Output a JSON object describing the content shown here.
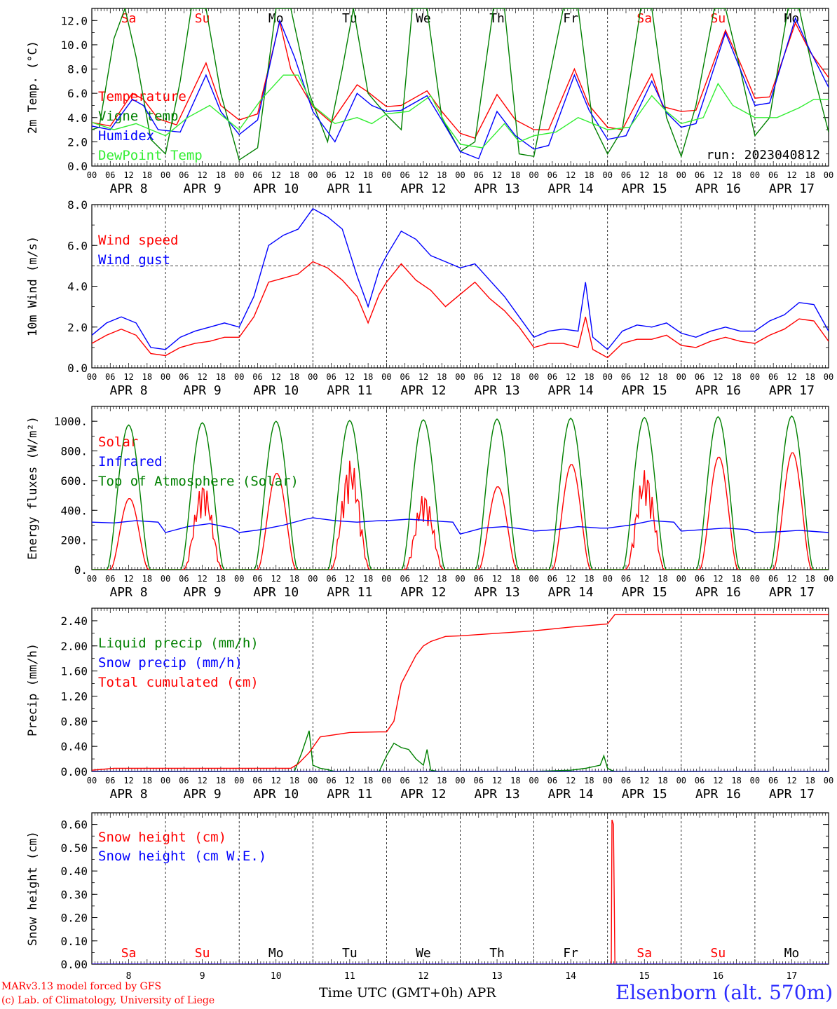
{
  "footer": {
    "model": "MARv3.13 model forced by GFS",
    "copyright": "(c) Lab. of Climatology, University of Liege",
    "xaxis_title": "Time UTC (GMT+0h) APR",
    "station": "Elsenborn (alt. 570m)"
  },
  "colors": {
    "red": "#ff0000",
    "blue": "#0000ff",
    "darkgreen": "#008000",
    "lightgreen": "#33ee33",
    "purple": "#800080",
    "grid": "#000000"
  },
  "days": {
    "dates": [
      "APR  8",
      "APR  9",
      "APR 10",
      "APR 11",
      "APR 12",
      "APR 13",
      "APR 14",
      "APR 15",
      "APR 16",
      "APR 17"
    ],
    "short_dates": [
      "8",
      "9",
      "10",
      "11",
      "12",
      "13",
      "14",
      "15",
      "16",
      "17"
    ],
    "weekdays": [
      "Sa",
      "Su",
      "Mo",
      "Tu",
      "We",
      "Th",
      "Fr",
      "Sa",
      "Su",
      "Mo"
    ],
    "weekday_colors": [
      "red",
      "red",
      "black",
      "black",
      "black",
      "black",
      "black",
      "red",
      "red",
      "black"
    ],
    "hour_ticks": [
      "00",
      "06",
      "12",
      "18"
    ],
    "end_tick": "00"
  },
  "chart_data": [
    {
      "type": "line",
      "ylabel": "2m Temp. (°C)",
      "ylim": [
        0,
        13
      ],
      "yticks": [
        "0.0",
        "2.0",
        "4.0",
        "6.0",
        "8.0",
        "10.0",
        "12.0"
      ],
      "annotation": "run: 2023040812",
      "x_unit": "days since APR 8 00 UTC",
      "series": [
        {
          "name": "Temperature",
          "color": "red",
          "x": [
            0,
            0.25,
            0.55,
            0.7,
            0.9,
            1.15,
            1.55,
            1.75,
            2.0,
            2.25,
            2.55,
            2.7,
            3.0,
            3.25,
            3.6,
            3.75,
            4.0,
            4.2,
            4.55,
            4.75,
            5.0,
            5.2,
            5.5,
            5.75,
            6.0,
            6.2,
            6.55,
            6.75,
            7.0,
            7.2,
            7.6,
            7.75,
            8.0,
            8.2,
            8.6,
            8.8,
            9.0,
            9.2,
            9.55,
            9.75,
            10.0
          ],
          "y": [
            3.6,
            3.3,
            6.0,
            5.5,
            3.9,
            3.4,
            8.5,
            5.0,
            3.8,
            4.3,
            11.9,
            8.0,
            4.9,
            3.6,
            6.7,
            6.1,
            4.9,
            5.0,
            6.2,
            4.5,
            2.7,
            2.3,
            5.9,
            3.8,
            3.0,
            3.0,
            8.0,
            5.0,
            3.2,
            3.0,
            7.6,
            4.9,
            4.5,
            4.6,
            11.2,
            8.5,
            5.6,
            5.7,
            11.8,
            9.4,
            7.3
          ]
        },
        {
          "name": "Vigne temp",
          "color": "darkgreen",
          "x": [
            0,
            0.1,
            0.3,
            0.45,
            0.6,
            0.8,
            1.0,
            1.2,
            1.35,
            1.55,
            1.75,
            2.0,
            2.25,
            2.5,
            2.7,
            2.95,
            3.2,
            3.4,
            3.55,
            3.75,
            4.0,
            4.2,
            4.35,
            4.55,
            4.75,
            5.0,
            5.2,
            5.45,
            5.6,
            5.8,
            6.0,
            6.2,
            6.4,
            6.6,
            6.8,
            7.0,
            7.2,
            7.45,
            7.6,
            7.8,
            8.0,
            8.2,
            8.45,
            8.6,
            8.8,
            9.0,
            9.2,
            9.45,
            9.6,
            9.8,
            10.0
          ],
          "y": [
            3.0,
            3.2,
            10.5,
            13,
            9,
            2.2,
            1.0,
            7.0,
            13,
            13,
            6,
            0.5,
            1.5,
            13,
            13,
            6,
            2.0,
            8,
            13,
            6,
            4.2,
            3.0,
            13,
            13,
            4.0,
            1.2,
            2.0,
            13,
            13,
            1.0,
            0.8,
            7,
            13,
            13,
            3.5,
            1.0,
            3.0,
            13,
            13,
            4.0,
            0.8,
            5.0,
            13,
            13,
            8,
            2.5,
            4.0,
            13,
            13,
            7.5,
            2.8
          ]
        },
        {
          "name": "Humidex",
          "color": "blue",
          "x": [
            0,
            0.25,
            0.55,
            0.7,
            0.9,
            1.2,
            1.55,
            1.75,
            2.0,
            2.25,
            2.55,
            2.75,
            3.0,
            3.3,
            3.6,
            3.8,
            4.0,
            4.2,
            4.55,
            4.75,
            5.0,
            5.25,
            5.5,
            5.75,
            6.0,
            6.2,
            6.55,
            6.75,
            7.0,
            7.25,
            7.6,
            7.8,
            8.0,
            8.2,
            8.6,
            8.8,
            9.0,
            9.2,
            9.55,
            9.75,
            10.0
          ],
          "y": [
            3.3,
            3.0,
            5.5,
            5.0,
            3.0,
            2.8,
            7.5,
            4.5,
            2.6,
            3.8,
            12.0,
            9.0,
            4.5,
            2.0,
            6.0,
            5.0,
            4.5,
            4.6,
            5.8,
            3.8,
            1.2,
            0.6,
            4.5,
            2.5,
            1.4,
            1.7,
            7.5,
            4.6,
            2.2,
            2.5,
            7.0,
            4.4,
            3.2,
            3.5,
            11.0,
            8.0,
            5.0,
            5.2,
            12.2,
            9.5,
            6.5
          ]
        },
        {
          "name": "DewPoint Temp",
          "color": "lightgreen",
          "x": [
            0,
            0.3,
            0.6,
            0.8,
            1.0,
            1.3,
            1.6,
            1.8,
            2.0,
            2.3,
            2.6,
            2.8,
            3.0,
            3.3,
            3.6,
            3.8,
            4.0,
            4.3,
            4.6,
            4.8,
            5.0,
            5.3,
            5.6,
            5.8,
            6.0,
            6.3,
            6.6,
            6.8,
            7.0,
            7.3,
            7.6,
            7.8,
            8.0,
            8.3,
            8.5,
            8.7,
            9.0,
            9.3,
            9.6,
            9.8,
            10.0
          ],
          "y": [
            3.6,
            3.0,
            3.5,
            3.0,
            2.5,
            4.0,
            5.0,
            4.0,
            3.0,
            5.5,
            7.5,
            7.5,
            5.0,
            3.5,
            4.0,
            3.5,
            4.3,
            4.5,
            5.8,
            3.5,
            1.8,
            1.5,
            3.5,
            2.0,
            2.5,
            2.8,
            4.0,
            3.5,
            3.0,
            3.2,
            5.8,
            4.5,
            3.5,
            4.0,
            6.8,
            5.0,
            4.0,
            4.0,
            4.8,
            5.5,
            5.5
          ]
        }
      ]
    },
    {
      "type": "line",
      "ylabel": "10m Wind (m/s)",
      "ylim": [
        0,
        8
      ],
      "yticks": [
        "0.0",
        "2.0",
        "4.0",
        "6.0",
        "8.0"
      ],
      "reference_line": 5,
      "series": [
        {
          "name": "Wind speed",
          "color": "red",
          "x": [
            0,
            0.2,
            0.4,
            0.6,
            0.8,
            1.0,
            1.2,
            1.4,
            1.6,
            1.8,
            2.0,
            2.2,
            2.4,
            2.6,
            2.8,
            3.0,
            3.2,
            3.4,
            3.6,
            3.75,
            3.9,
            4.0,
            4.2,
            4.4,
            4.6,
            4.8,
            5.0,
            5.2,
            5.4,
            5.6,
            5.8,
            6.0,
            6.2,
            6.4,
            6.6,
            6.7,
            6.8,
            7.0,
            7.2,
            7.4,
            7.6,
            7.8,
            8.0,
            8.2,
            8.4,
            8.6,
            8.8,
            9.0,
            9.2,
            9.4,
            9.6,
            9.8,
            10.0
          ],
          "y": [
            1.2,
            1.6,
            1.9,
            1.6,
            0.7,
            0.6,
            1.0,
            1.2,
            1.3,
            1.5,
            1.5,
            2.5,
            4.2,
            4.4,
            4.6,
            5.2,
            4.9,
            4.3,
            3.5,
            2.2,
            3.6,
            4.2,
            5.1,
            4.3,
            3.8,
            3.0,
            3.6,
            4.2,
            3.4,
            2.8,
            2.0,
            1.0,
            1.2,
            1.2,
            1.0,
            2.5,
            0.9,
            0.5,
            1.2,
            1.4,
            1.4,
            1.6,
            1.1,
            1.0,
            1.3,
            1.5,
            1.3,
            1.2,
            1.6,
            1.9,
            2.4,
            2.3,
            1.3
          ]
        },
        {
          "name": "Wind gust",
          "color": "blue",
          "x": [
            0,
            0.2,
            0.4,
            0.6,
            0.8,
            1.0,
            1.2,
            1.4,
            1.6,
            1.8,
            2.0,
            2.2,
            2.4,
            2.6,
            2.8,
            3.0,
            3.2,
            3.4,
            3.6,
            3.75,
            3.9,
            4.0,
            4.2,
            4.4,
            4.6,
            4.8,
            5.0,
            5.2,
            5.4,
            5.6,
            5.8,
            6.0,
            6.2,
            6.4,
            6.6,
            6.7,
            6.8,
            7.0,
            7.2,
            7.4,
            7.6,
            7.8,
            8.0,
            8.2,
            8.4,
            8.6,
            8.8,
            9.0,
            9.2,
            9.4,
            9.6,
            9.8,
            10.0
          ],
          "y": [
            1.6,
            2.2,
            2.5,
            2.2,
            1.0,
            0.9,
            1.5,
            1.8,
            2.0,
            2.2,
            2.0,
            3.5,
            6.0,
            6.5,
            6.8,
            7.8,
            7.4,
            6.8,
            4.5,
            3.0,
            4.8,
            5.5,
            6.7,
            6.3,
            5.5,
            5.2,
            4.9,
            5.1,
            4.3,
            3.5,
            2.5,
            1.5,
            1.8,
            1.9,
            1.8,
            4.2,
            1.5,
            0.9,
            1.8,
            2.1,
            2.0,
            2.2,
            1.7,
            1.5,
            1.8,
            2.0,
            1.8,
            1.8,
            2.3,
            2.6,
            3.2,
            3.1,
            1.8
          ]
        }
      ]
    },
    {
      "type": "line",
      "ylabel": "Energy fluxes (W/m²)",
      "ylim": [
        0,
        1100
      ],
      "yticks": [
        "0.",
        "200.",
        "400.",
        "600.",
        "800.",
        "1000."
      ],
      "series": [
        {
          "name": "Solar",
          "color": "red",
          "peaks": [
            480,
            590,
            650,
            750,
            520,
            560,
            710,
            680,
            760,
            790
          ]
        },
        {
          "name": "Infrared",
          "color": "blue",
          "x": [
            0,
            0.3,
            0.6,
            0.9,
            1.0,
            1.3,
            1.6,
            1.9,
            2.0,
            2.3,
            2.6,
            2.9,
            3.0,
            3.3,
            3.6,
            3.9,
            4.0,
            4.3,
            4.6,
            4.9,
            5.0,
            5.3,
            5.6,
            5.9,
            6.0,
            6.3,
            6.6,
            6.9,
            7.0,
            7.3,
            7.6,
            7.9,
            8.0,
            8.3,
            8.6,
            8.9,
            9.0,
            9.3,
            9.6,
            10.0
          ],
          "y": [
            320,
            315,
            330,
            320,
            250,
            290,
            310,
            280,
            250,
            270,
            300,
            340,
            350,
            330,
            320,
            330,
            330,
            340,
            330,
            320,
            240,
            280,
            290,
            270,
            260,
            270,
            290,
            280,
            280,
            300,
            330,
            320,
            260,
            270,
            280,
            270,
            250,
            255,
            265,
            250
          ]
        },
        {
          "name": "Top of Atmosphere (Solar)",
          "color": "darkgreen",
          "peaks": [
            975,
            990,
            1000,
            1005,
            1010,
            1015,
            1020,
            1025,
            1030,
            1035
          ]
        }
      ]
    },
    {
      "type": "line",
      "ylabel": "Precip (mm/h)",
      "ylim": [
        0,
        2.6
      ],
      "yticks": [
        "0.00",
        "0.40",
        "0.80",
        "1.20",
        "1.60",
        "2.00",
        "2.40"
      ],
      "series": [
        {
          "name": "Liquid precip (mm/h)",
          "color": "darkgreen",
          "x": [
            0,
            2.75,
            2.85,
            2.95,
            3.0,
            3.1,
            3.2,
            3.3,
            3.5,
            3.7,
            3.9,
            4.0,
            4.1,
            4.2,
            4.3,
            4.4,
            4.5,
            4.55,
            4.6,
            4.7,
            5.0,
            6.0,
            6.5,
            6.7,
            6.9,
            6.95,
            7.0,
            7.05,
            7.1,
            8.0,
            10.0
          ],
          "y": [
            0,
            0,
            0.3,
            0.65,
            0.1,
            0.05,
            0.03,
            0,
            0,
            0,
            0,
            0.25,
            0.45,
            0.38,
            0.35,
            0.2,
            0.1,
            0.35,
            0.02,
            0,
            0,
            0,
            0.02,
            0.05,
            0.1,
            0.25,
            0.05,
            0.02,
            0,
            0,
            0
          ]
        },
        {
          "name": "Snow precip (mm/h)",
          "color": "blue",
          "x": [
            0,
            10
          ],
          "y": [
            0,
            0
          ]
        },
        {
          "name": "Total cumulated (cm)",
          "color": "red",
          "x": [
            0,
            0.3,
            2.7,
            2.8,
            2.95,
            3.1,
            3.5,
            3.9,
            4.0,
            4.1,
            4.2,
            4.4,
            4.5,
            4.6,
            4.8,
            5.0,
            5.5,
            6.0,
            6.5,
            7.0,
            7.1,
            8.0,
            10.0
          ],
          "y": [
            0.02,
            0.05,
            0.05,
            0.12,
            0.3,
            0.55,
            0.62,
            0.63,
            0.63,
            0.8,
            1.4,
            1.85,
            2.0,
            2.07,
            2.15,
            2.16,
            2.2,
            2.24,
            2.3,
            2.35,
            2.5,
            2.5,
            2.5
          ]
        }
      ]
    },
    {
      "type": "line",
      "ylabel": "Snow height (cm)",
      "ylim": [
        0,
        0.65
      ],
      "yticks": [
        "0.00",
        "0.10",
        "0.20",
        "0.30",
        "0.40",
        "0.50",
        "0.60"
      ],
      "series": [
        {
          "name": "Snow height (cm)",
          "color": "red",
          "x": [
            0,
            7.05,
            7.06,
            7.08,
            7.1,
            10.0
          ],
          "y": [
            0,
            0,
            0.62,
            0.6,
            0,
            0
          ]
        },
        {
          "name": "Snow height (cm W.E.)",
          "color": "blue",
          "x": [
            0,
            10
          ],
          "y": [
            0,
            0
          ]
        }
      ]
    }
  ]
}
